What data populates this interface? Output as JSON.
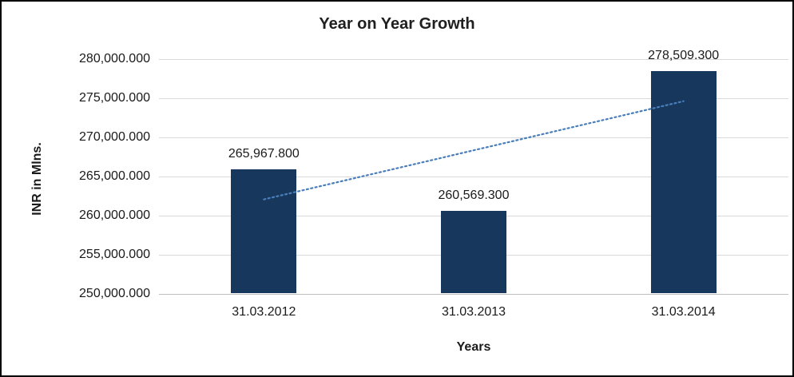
{
  "chart_data": {
    "type": "bar",
    "title": "Year on Year Growth",
    "xlabel": "Years",
    "ylabel": "INR in Mlns.",
    "categories": [
      "31.03.2012",
      "31.03.2013",
      "31.03.2014"
    ],
    "values": [
      265967.8,
      260569.3,
      278509.3
    ],
    "data_labels": [
      "265,967.800",
      "260,569.300",
      "278,509.300"
    ],
    "ylim": [
      250000,
      280000
    ],
    "ytick_step": 5000,
    "ytick_labels": [
      "250,000.000",
      "255,000.000",
      "260,000.000",
      "265,000.000",
      "270,000.000",
      "275,000.000",
      "280,000.000"
    ],
    "grid": true,
    "legend": "none",
    "bar_color": "#17375d",
    "gridline_color": "#d9d9d9",
    "axis_line_color": "#bfbfbf",
    "trendline": {
      "show": true,
      "color": "#4a7ebb",
      "style": "dotted"
    }
  }
}
